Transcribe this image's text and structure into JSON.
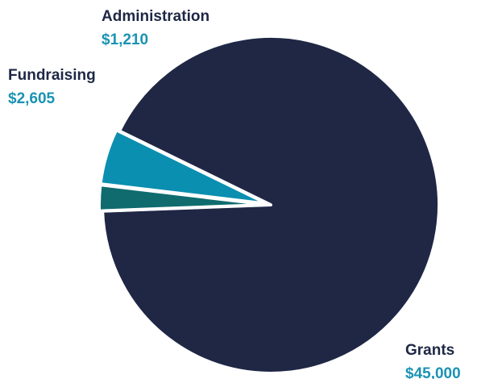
{
  "chart_data": {
    "type": "pie",
    "categories": [
      "Grants",
      "Administration",
      "Fundraising"
    ],
    "values": [
      45000,
      1210,
      2605
    ],
    "value_labels": [
      "$45,000",
      "$1,210",
      "$2,605"
    ],
    "colors": [
      "#1f2745",
      "#0f6b6e",
      "#0a8fb0"
    ],
    "label_color": "#1e2745",
    "value_color": "#1a93b3",
    "title": "",
    "legend": "none"
  }
}
